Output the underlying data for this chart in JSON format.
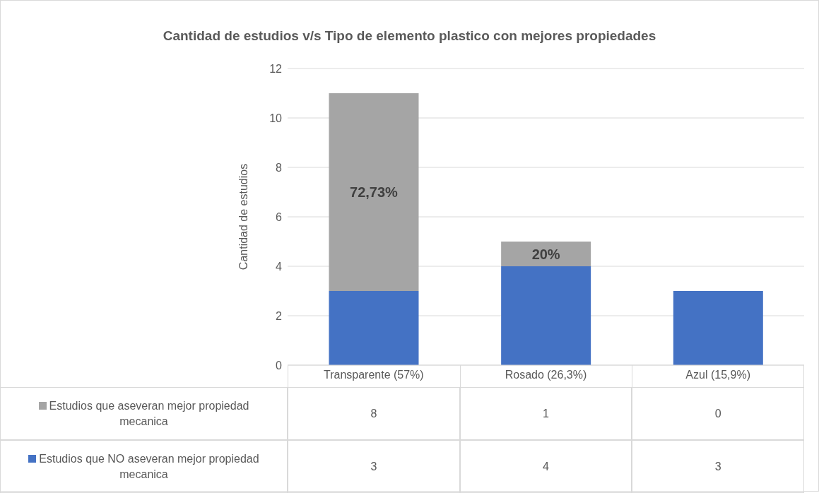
{
  "chart_data": {
    "type": "bar",
    "title": "Cantidad de estudios v/s Tipo de elemento plastico con mejores propiedades",
    "ylabel": "Cantidad de estudios",
    "categories": [
      "Transparente (57%)",
      "Rosado (26,3%)",
      "Azul (15,9%)"
    ],
    "series": [
      {
        "name": "Estudios que NO aseveran mejor propiedad mecanica",
        "color": "#4472c4",
        "values": [
          3,
          4,
          3
        ]
      },
      {
        "name": "Estudios que aseveran mejor propiedad mecanica",
        "color": "#a5a5a5",
        "values": [
          8,
          1,
          0
        ]
      }
    ],
    "stacked": true,
    "ylim": [
      0,
      12
    ],
    "yticks": [
      0,
      2,
      4,
      6,
      8,
      10,
      12
    ],
    "grid": "y",
    "legend": "bottom",
    "data_labels": true,
    "annotations": [
      "72,73%",
      "20%"
    ]
  }
}
